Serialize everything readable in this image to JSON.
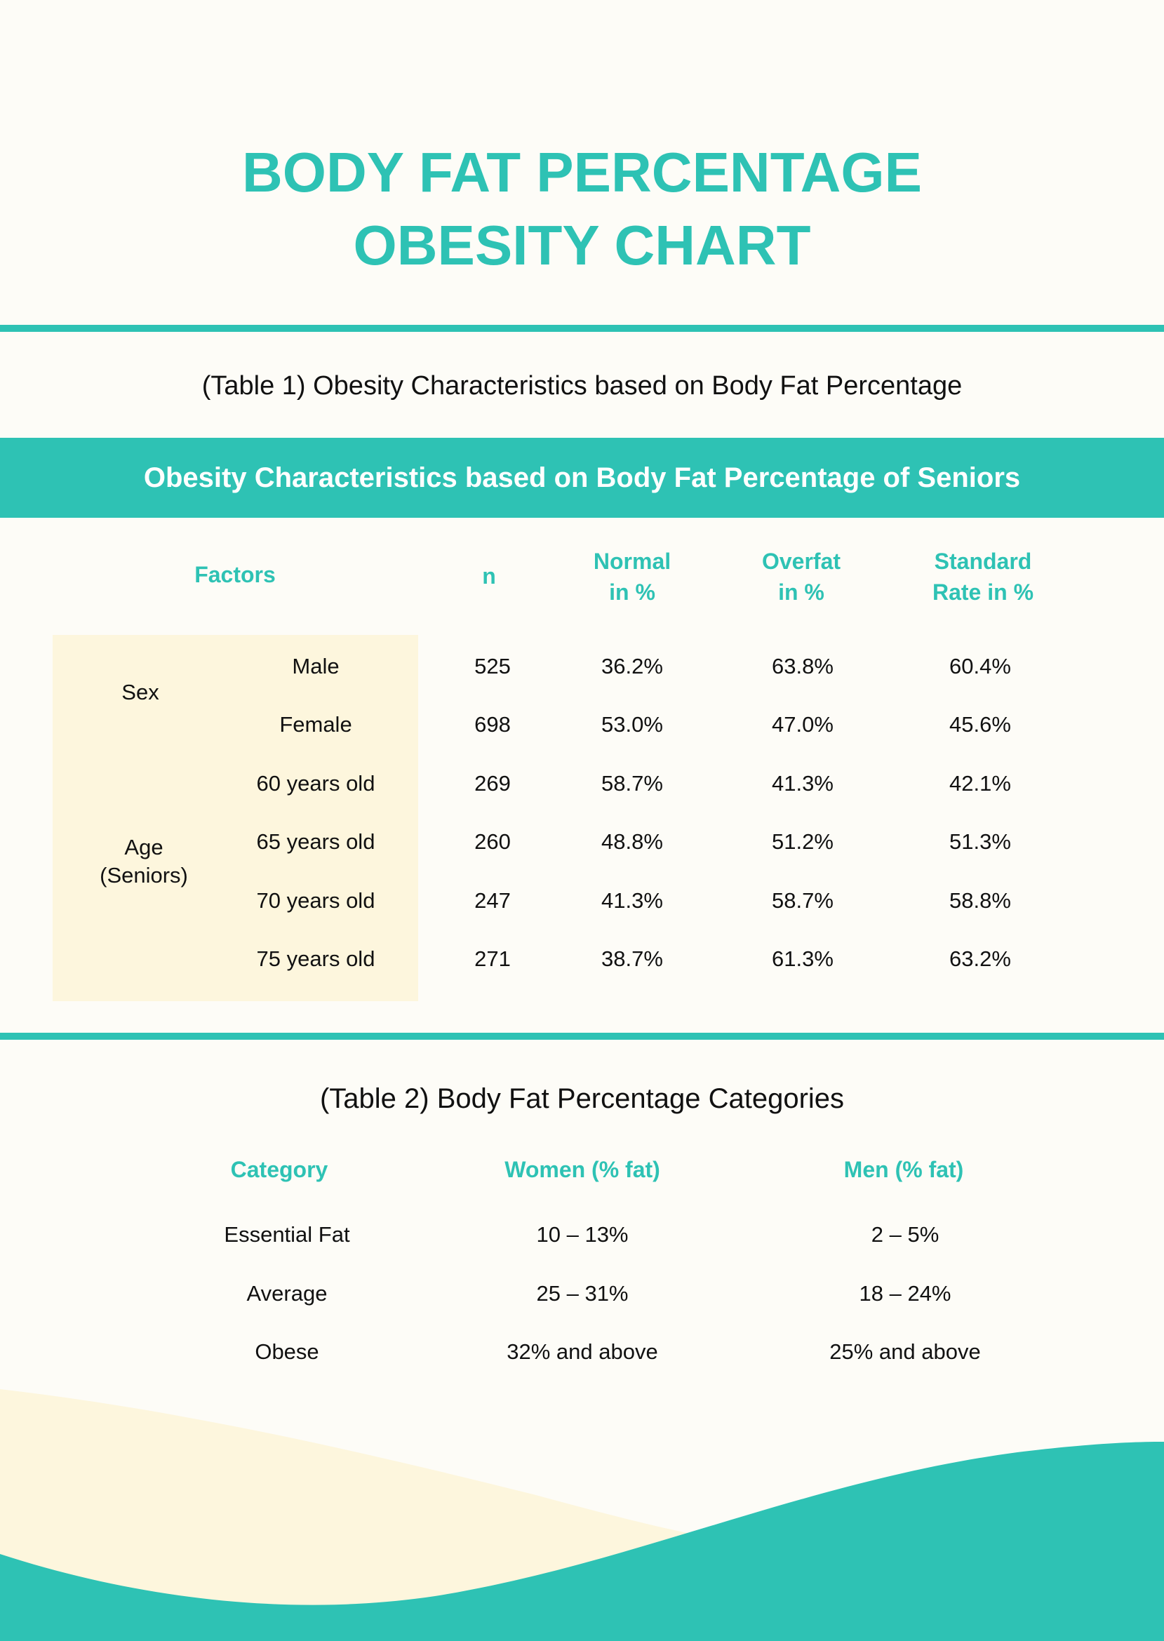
{
  "header": {
    "title_line1": "BODY FAT PERCENTAGE",
    "title_line2": "OBESITY CHART"
  },
  "table1": {
    "caption": "(Table 1) Obesity Characteristics based on Body Fat Percentage",
    "banner": "Obesity Characteristics based on Body Fat Percentage of Seniors",
    "headers": {
      "factors": "Factors",
      "n": "n",
      "normal_1": "Normal",
      "normal_2": "in %",
      "overfat_1": "Overfat",
      "overfat_2": "in %",
      "standard_1": "Standard",
      "standard_2": "Rate in %"
    },
    "groups": {
      "sex": "Sex",
      "age_1": "Age",
      "age_2": "(Seniors)"
    },
    "rows": [
      {
        "label": "Male",
        "n": "525",
        "normal": "36.2%",
        "overfat": "63.8%",
        "standard": "60.4%"
      },
      {
        "label": "Female",
        "n": "698",
        "normal": "53.0%",
        "overfat": "47.0%",
        "standard": "45.6%"
      },
      {
        "label": "60 years old",
        "n": "269",
        "normal": "58.7%",
        "overfat": "41.3%",
        "standard": "42.1%"
      },
      {
        "label": "65 years old",
        "n": "260",
        "normal": "48.8%",
        "overfat": "51.2%",
        "standard": "51.3%"
      },
      {
        "label": "70 years old",
        "n": "247",
        "normal": "41.3%",
        "overfat": "58.7%",
        "standard": "58.8%"
      },
      {
        "label": "75 years old",
        "n": "271",
        "normal": "38.7%",
        "overfat": "61.3%",
        "standard": "63.2%"
      }
    ]
  },
  "table2": {
    "caption": "(Table 2) Body Fat Percentage Categories",
    "headers": {
      "category": "Category",
      "women": "Women (% fat)",
      "men": "Men (% fat)"
    },
    "rows": [
      {
        "category": "Essential Fat",
        "women": "10 – 13%",
        "men": "2 – 5%"
      },
      {
        "category": "Average",
        "women": "25 – 31%",
        "men": "18 – 24%"
      },
      {
        "category": "Obese",
        "women": "32% and above",
        "men": "25% and above"
      }
    ]
  },
  "colors": {
    "accent": "#2ec2b4",
    "background": "#fdfcf7",
    "highlight": "#fdf6dd"
  }
}
